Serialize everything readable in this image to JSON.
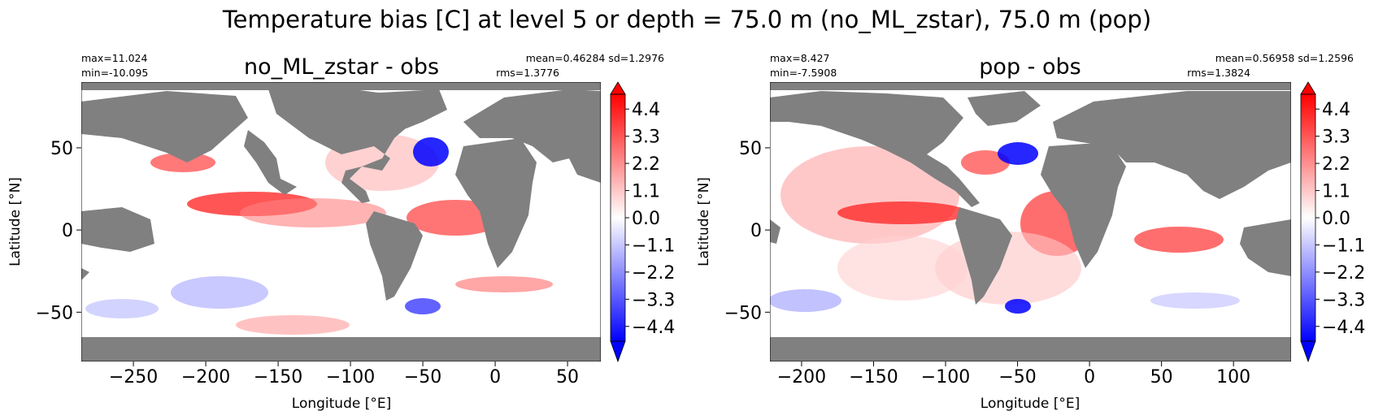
{
  "figure": {
    "suptitle": "Temperature bias [C] at level 5 or depth = 75.0 m (no_ML_zstar), 75.0 m (pop)"
  },
  "colors": {
    "land": "#808080",
    "positive": "#ff0000",
    "negative": "#0000ff",
    "neutral": "#ffffff"
  },
  "chart_data": [
    {
      "type": "heatmap",
      "title": "no_ML_zstar - obs",
      "stats_left": [
        "max=11.024",
        "min=-10.095"
      ],
      "stats_right": [
        "mean=0.46284 sd=1.2976",
        "rms=1.3776"
      ],
      "xlabel": "Longitude [°E]",
      "ylabel": "Latitude [°N]",
      "xlim": [
        -286,
        73
      ],
      "ylim": [
        -80,
        90
      ],
      "xticks": [
        -250,
        -200,
        -150,
        -100,
        -50,
        0,
        50
      ],
      "xticklabels": [
        "−250",
        "−200",
        "−150",
        "−100",
        "−50",
        "0",
        "50"
      ],
      "yticks": [
        50,
        0,
        -50
      ],
      "yticklabels": [
        "50",
        "0",
        "−50"
      ],
      "colorbar": {
        "range": [
          -5,
          5
        ],
        "ticks": [
          4.4,
          3.3,
          2.2,
          1.1,
          0.0,
          -1.1,
          -2.2,
          -3.3,
          -4.4
        ],
        "ticklabels": [
          "4.4",
          "3.3",
          "2.2",
          "1.1",
          "0.0",
          "−1.1",
          "−2.2",
          "−3.3",
          "−4.4"
        ],
        "extend": "both",
        "colormap": "bwr"
      }
    },
    {
      "type": "heatmap",
      "title": "pop - obs",
      "stats_left": [
        "max=8.427",
        "min=-7.5908"
      ],
      "stats_right": [
        "mean=0.56958 sd=1.2596",
        "rms=1.3824"
      ],
      "xlabel": "Longitude [°E]",
      "ylabel": "Latitude [°N]",
      "xlim": [
        -222,
        140
      ],
      "ylim": [
        -80,
        90
      ],
      "xticks": [
        -200,
        -150,
        -100,
        -50,
        0,
        50,
        100
      ],
      "xticklabels": [
        "−200",
        "−150",
        "−100",
        "−50",
        "0",
        "50",
        "100"
      ],
      "yticks": [
        50,
        0,
        -50
      ],
      "yticklabels": [
        "50",
        "0",
        "−50"
      ],
      "colorbar": {
        "range": [
          -5,
          5
        ],
        "ticks": [
          4.4,
          3.3,
          2.2,
          1.1,
          0.0,
          -1.1,
          -2.2,
          -3.3,
          -4.4
        ],
        "ticklabels": [
          "4.4",
          "3.3",
          "2.2",
          "1.1",
          "0.0",
          "−1.1",
          "−2.2",
          "−3.3",
          "−4.4"
        ],
        "extend": "both",
        "colormap": "bwr"
      }
    }
  ]
}
